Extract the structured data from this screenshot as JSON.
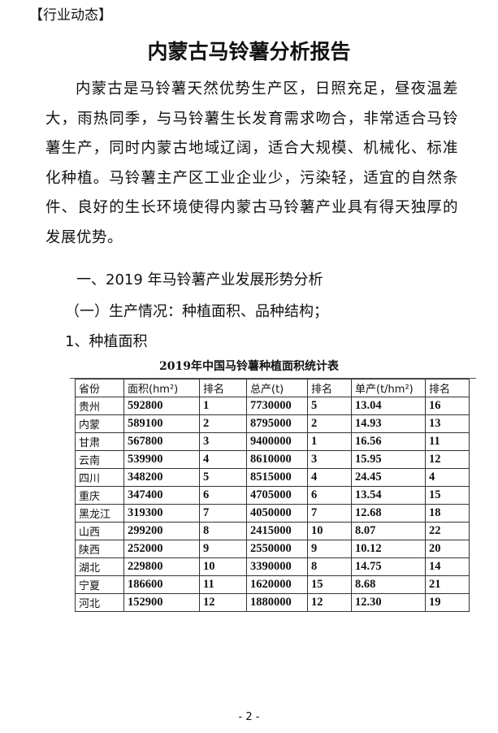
{
  "tag": "【行业动态】",
  "title": "内蒙古马铃薯分析报告",
  "paragraph": "内蒙古是马铃薯天然优势生产区，日照充足，昼夜温差大，雨热同季，与马铃薯生长发育需求吻合，非常适合马铃薯生产，同时内蒙古地域辽阔，适合大规模、机械化、标准化种植。马铃薯主产区工业企业少，污染轻，适宜的自然条件、良好的生长环境使得内蒙古马铃薯产业具有得天独厚的发展优势。",
  "heading1": "一、2019 年马铃薯产业发展形势分析",
  "heading2": "（一）生产情况：种植面积、品种结构；",
  "heading3": "1、种植面积",
  "table": {
    "title": "2019年中国马铃薯种植面积统计表",
    "headers": [
      "省份",
      "面积(hm²)",
      "排名",
      "总产(t)",
      "排名",
      "单产(t/hm²)",
      "排名"
    ],
    "rows": [
      [
        "贵州",
        "592800",
        "1",
        "7730000",
        "5",
        "13.04",
        "16"
      ],
      [
        "内蒙",
        "589100",
        "2",
        "8795000",
        "2",
        "14.93",
        "13"
      ],
      [
        "甘肃",
        "567800",
        "3",
        "9400000",
        "1",
        "16.56",
        "11"
      ],
      [
        "云南",
        "539900",
        "4",
        "8610000",
        "3",
        "15.95",
        "12"
      ],
      [
        "四川",
        "348200",
        "5",
        "8515000",
        "4",
        "24.45",
        "4"
      ],
      [
        "重庆",
        "347400",
        "6",
        "4705000",
        "6",
        "13.54",
        "15"
      ],
      [
        "黑龙江",
        "319300",
        "7",
        "4050000",
        "7",
        "12.68",
        "18"
      ],
      [
        "山西",
        "299200",
        "8",
        "2415000",
        "10",
        "8.07",
        "22"
      ],
      [
        "陕西",
        "252000",
        "9",
        "2550000",
        "9",
        "10.12",
        "20"
      ],
      [
        "湖北",
        "229800",
        "10",
        "3390000",
        "8",
        "14.75",
        "14"
      ],
      [
        "宁夏",
        "186600",
        "11",
        "1620000",
        "15",
        "8.68",
        "21"
      ],
      [
        "河北",
        "152900",
        "12",
        "1880000",
        "12",
        "12.30",
        "19"
      ]
    ]
  },
  "page_number": "- 2 -"
}
